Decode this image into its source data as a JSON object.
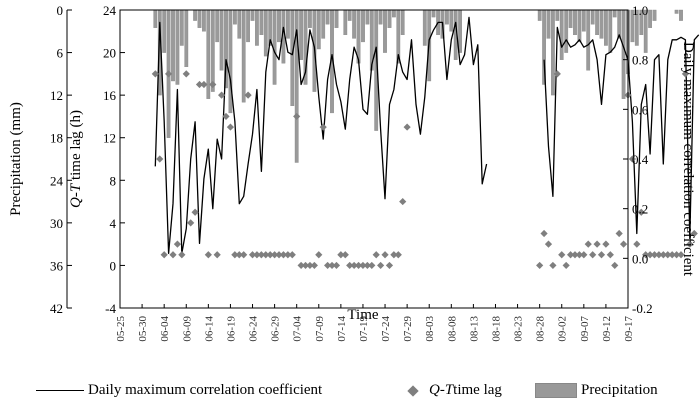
{
  "chart_data": {
    "type": "combo",
    "x_tick_labels": [
      "05-25",
      "05-30",
      "06-04",
      "06-09",
      "06-14",
      "06-19",
      "06-24",
      "06-29",
      "07-04",
      "07-09",
      "07-14",
      "07-19",
      "07-24",
      "07-29",
      "08-03",
      "08-08",
      "08-13",
      "08-18",
      "08-23",
      "08-28",
      "09-02",
      "09-07",
      "09-12",
      "09-17"
    ],
    "x_range_days": [
      0,
      115
    ],
    "xlabel": "Time",
    "y_left_outer": {
      "label": "Precipitation (mm)",
      "ticks": [
        "0",
        "6",
        "12",
        "18",
        "24",
        "30",
        "36",
        "42"
      ],
      "range": [
        0,
        42
      ],
      "inverted": true
    },
    "y_left_inner": {
      "label_italic": "Q-T",
      "label_rest": " time lag (h)",
      "ticks": [
        "24",
        "20",
        "16",
        "12",
        "8",
        "4",
        "0",
        "-4"
      ],
      "range": [
        -4,
        24
      ]
    },
    "y_right": {
      "label": "Daily maximum correlation coefficient",
      "ticks": [
        "1.0",
        "0.8",
        "0.6",
        "0.4",
        "0.2",
        "0.0",
        "-0.2"
      ],
      "range": [
        -0.2,
        1.0
      ]
    },
    "series": [
      {
        "name": "Daily maximum correlation coefficient",
        "kind": "line",
        "segments": [
          [
            [
              8,
              0.37
            ],
            [
              9,
              0.95
            ],
            [
              10,
              0.55
            ],
            [
              11,
              0.02
            ],
            [
              12,
              0.22
            ],
            [
              13,
              0.68
            ],
            [
              14,
              0.02
            ],
            [
              15,
              0.12
            ],
            [
              16,
              0.4
            ],
            [
              17,
              0.55
            ],
            [
              18,
              0.06
            ],
            [
              19,
              0.32
            ],
            [
              20,
              0.44
            ],
            [
              21,
              0.2
            ],
            [
              22,
              0.48
            ],
            [
              23,
              0.4
            ],
            [
              24,
              0.8
            ],
            [
              25,
              0.72
            ],
            [
              26,
              0.55
            ],
            [
              27,
              0.22
            ],
            [
              28,
              0.25
            ],
            [
              29,
              0.38
            ],
            [
              30,
              0.5
            ],
            [
              31,
              0.68
            ],
            [
              32,
              0.35
            ],
            [
              33,
              0.75
            ],
            [
              34,
              0.88
            ],
            [
              35,
              0.83
            ],
            [
              36,
              0.8
            ],
            [
              37,
              0.93
            ],
            [
              38,
              0.83
            ],
            [
              39,
              0.82
            ],
            [
              40,
              0.92
            ],
            [
              41,
              0.7
            ],
            [
              42,
              0.75
            ],
            [
              43,
              0.92
            ],
            [
              44,
              0.85
            ],
            [
              45,
              0.65
            ],
            [
              46,
              0.48
            ],
            [
              47,
              0.72
            ],
            [
              48,
              0.82
            ],
            [
              49,
              0.7
            ],
            [
              50,
              0.63
            ],
            [
              51,
              0.52
            ],
            [
              52,
              0.72
            ],
            [
              53,
              0.85
            ],
            [
              54,
              0.8
            ],
            [
              55,
              0.6
            ],
            [
              56,
              0.58
            ],
            [
              57,
              0.78
            ],
            [
              58,
              0.85
            ],
            [
              59,
              0.52
            ],
            [
              60,
              0.24
            ],
            [
              61,
              0.62
            ],
            [
              62,
              0.68
            ],
            [
              63,
              0.82
            ],
            [
              64,
              0.75
            ],
            [
              65,
              0.72
            ],
            [
              66,
              0.88
            ],
            [
              67,
              0.62
            ],
            [
              68,
              0.5
            ],
            [
              69,
              0.65
            ],
            [
              70,
              0.88
            ],
            [
              71,
              0.92
            ],
            [
              72,
              0.95
            ],
            [
              73,
              0.95
            ],
            [
              74,
              0.72
            ],
            [
              75,
              0.88
            ],
            [
              76,
              0.95
            ],
            [
              77,
              0.78
            ],
            [
              78,
              0.82
            ],
            [
              79,
              0.97
            ],
            [
              80,
              0.78
            ],
            [
              81,
              0.86
            ],
            [
              82,
              0.3
            ],
            [
              83,
              0.38
            ]
          ],
          [
            [
              96,
              0.8
            ],
            [
              97,
              0.45
            ],
            [
              98,
              0.25
            ],
            [
              99,
              0.93
            ],
            [
              100,
              0.85
            ],
            [
              101,
              0.88
            ],
            [
              102,
              0.85
            ],
            [
              103,
              0.86
            ],
            [
              104,
              0.88
            ],
            [
              105,
              0.85
            ],
            [
              106,
              0.86
            ],
            [
              107,
              0.88
            ],
            [
              108,
              0.8
            ],
            [
              109,
              0.62
            ],
            [
              110,
              0.82
            ],
            [
              111,
              0.83
            ],
            [
              112,
              0.85
            ],
            [
              113,
              0.9
            ],
            [
              114,
              0.85
            ],
            [
              115,
              0.8
            ],
            [
              116,
              0.55
            ],
            [
              117,
              0.1
            ],
            [
              118,
              0.62
            ],
            [
              119,
              0.7
            ],
            [
              120,
              0.42
            ],
            [
              121,
              0.8
            ],
            [
              122,
              0.82
            ],
            [
              123,
              0.38
            ],
            [
              124,
              0.8
            ],
            [
              125,
              0.88
            ],
            [
              126,
              0.88
            ],
            [
              127,
              0.89
            ],
            [
              128,
              0.88
            ],
            [
              129,
              0.08
            ],
            [
              130,
              0.88
            ],
            [
              131,
              0.9
            ]
          ]
        ]
      },
      {
        "name": "Q-T time lag",
        "kind": "scatter",
        "points": [
          [
            8,
            18
          ],
          [
            9,
            10
          ],
          [
            10,
            1
          ],
          [
            11,
            18
          ],
          [
            12,
            1
          ],
          [
            13,
            2
          ],
          [
            14,
            1
          ],
          [
            15,
            18
          ],
          [
            16,
            4
          ],
          [
            17,
            5
          ],
          [
            18,
            17
          ],
          [
            19,
            17
          ],
          [
            20,
            1
          ],
          [
            21,
            17
          ],
          [
            22,
            1
          ],
          [
            23,
            16
          ],
          [
            24,
            14
          ],
          [
            25,
            13
          ],
          [
            26,
            1
          ],
          [
            27,
            1
          ],
          [
            28,
            1
          ],
          [
            29,
            16
          ],
          [
            30,
            1
          ],
          [
            31,
            1
          ],
          [
            32,
            1
          ],
          [
            33,
            1
          ],
          [
            34,
            1
          ],
          [
            35,
            1
          ],
          [
            36,
            1
          ],
          [
            37,
            1
          ],
          [
            38,
            1
          ],
          [
            39,
            1
          ],
          [
            40,
            14
          ],
          [
            41,
            0
          ],
          [
            42,
            0
          ],
          [
            43,
            0
          ],
          [
            44,
            0
          ],
          [
            45,
            1
          ],
          [
            46,
            13
          ],
          [
            47,
            0
          ],
          [
            48,
            0
          ],
          [
            49,
            0
          ],
          [
            50,
            1
          ],
          [
            51,
            1
          ],
          [
            52,
            0
          ],
          [
            53,
            0
          ],
          [
            54,
            0
          ],
          [
            55,
            0
          ],
          [
            56,
            0
          ],
          [
            57,
            0
          ],
          [
            58,
            1
          ],
          [
            59,
            0
          ],
          [
            60,
            1
          ],
          [
            61,
            0
          ],
          [
            62,
            1
          ],
          [
            63,
            1
          ],
          [
            64,
            6
          ],
          [
            65,
            13
          ],
          [
            95,
            0
          ],
          [
            96,
            3
          ],
          [
            97,
            2
          ],
          [
            98,
            0
          ],
          [
            99,
            18
          ],
          [
            100,
            1
          ],
          [
            101,
            0
          ],
          [
            102,
            1
          ],
          [
            103,
            1
          ],
          [
            104,
            1
          ],
          [
            105,
            1
          ],
          [
            106,
            2
          ],
          [
            107,
            1
          ],
          [
            108,
            2
          ],
          [
            109,
            1
          ],
          [
            110,
            2
          ],
          [
            111,
            1
          ],
          [
            112,
            0
          ],
          [
            113,
            3
          ],
          [
            114,
            2
          ],
          [
            115,
            16
          ],
          [
            116,
            10
          ],
          [
            117,
            2
          ],
          [
            118,
            5
          ],
          [
            119,
            1
          ],
          [
            120,
            1
          ],
          [
            121,
            1
          ],
          [
            122,
            1
          ],
          [
            123,
            1
          ],
          [
            124,
            1
          ],
          [
            125,
            1
          ],
          [
            126,
            1
          ],
          [
            127,
            1
          ],
          [
            128,
            18
          ],
          [
            129,
            2
          ],
          [
            130,
            3
          ]
        ]
      },
      {
        "name": "Precipitation",
        "kind": "bar",
        "axis": "y_left_outer",
        "points": [
          [
            8,
            2.5
          ],
          [
            9,
            12.0
          ],
          [
            10,
            6.0
          ],
          [
            11,
            18.0
          ],
          [
            12,
            10.0
          ],
          [
            13,
            10.5
          ],
          [
            14,
            5.0
          ],
          [
            15,
            8.0
          ],
          [
            17,
            1.5
          ],
          [
            18,
            2.5
          ],
          [
            19,
            3.0
          ],
          [
            20,
            12.5
          ],
          [
            21,
            11.5
          ],
          [
            22,
            4.5
          ],
          [
            23,
            8.5
          ],
          [
            24,
            11.0
          ],
          [
            25,
            14.5
          ],
          [
            26,
            2.0
          ],
          [
            27,
            4.0
          ],
          [
            28,
            13.0
          ],
          [
            29,
            4.5
          ],
          [
            30,
            1.5
          ],
          [
            31,
            5.0
          ],
          [
            32,
            3.5
          ],
          [
            33,
            6.5
          ],
          [
            34,
            5.0
          ],
          [
            35,
            10.5
          ],
          [
            36,
            4.5
          ],
          [
            37,
            7.5
          ],
          [
            38,
            4.0
          ],
          [
            39,
            13.5
          ],
          [
            40,
            21.5
          ],
          [
            41,
            7.0
          ],
          [
            42,
            10.5
          ],
          [
            43,
            2.5
          ],
          [
            44,
            11.5
          ],
          [
            45,
            5.5
          ],
          [
            46,
            4.0
          ],
          [
            47,
            2.0
          ],
          [
            48,
            14.5
          ],
          [
            49,
            2.5
          ],
          [
            51,
            3.5
          ],
          [
            52,
            1.5
          ],
          [
            53,
            4.0
          ],
          [
            54,
            7.5
          ],
          [
            55,
            4.5
          ],
          [
            56,
            2.0
          ],
          [
            57,
            8.5
          ],
          [
            58,
            17.0
          ],
          [
            59,
            2.0
          ],
          [
            60,
            6.0
          ],
          [
            61,
            2.5
          ],
          [
            62,
            1.0
          ],
          [
            63,
            7.5
          ],
          [
            64,
            3.5
          ],
          [
            69,
            5.0
          ],
          [
            70,
            10.0
          ],
          [
            71,
            1.0
          ],
          [
            72,
            3.5
          ],
          [
            73,
            4.0
          ],
          [
            74,
            2.0
          ],
          [
            75,
            3.0
          ],
          [
            76,
            7.0
          ],
          [
            77,
            6.0
          ],
          [
            95,
            1.5
          ],
          [
            96,
            10.5
          ],
          [
            97,
            4.0
          ],
          [
            98,
            12.0
          ],
          [
            99,
            1.5
          ],
          [
            100,
            7.0
          ],
          [
            101,
            6.0
          ],
          [
            102,
            2.5
          ],
          [
            103,
            3.5
          ],
          [
            104,
            4.5
          ],
          [
            105,
            3.0
          ],
          [
            106,
            8.5
          ],
          [
            107,
            2.0
          ],
          [
            108,
            3.5
          ],
          [
            109,
            4.0
          ],
          [
            110,
            5.0
          ],
          [
            111,
            6.0
          ],
          [
            112,
            1.0
          ],
          [
            113,
            4.0
          ],
          [
            114,
            12.5
          ],
          [
            115,
            9.0
          ],
          [
            116,
            4.5
          ],
          [
            117,
            5.0
          ],
          [
            118,
            3.5
          ],
          [
            119,
            6.0
          ],
          [
            120,
            2.5
          ],
          [
            121,
            1.5
          ],
          [
            126,
            0.5
          ],
          [
            127,
            1.5
          ]
        ]
      }
    ],
    "legend_placement": "bottom"
  },
  "legend": {
    "line_label": "Daily maximum correlation coefficient",
    "scatter_label_italic": "Q-T",
    "scatter_label_rest": " time lag",
    "bar_label": "Precipitation"
  }
}
